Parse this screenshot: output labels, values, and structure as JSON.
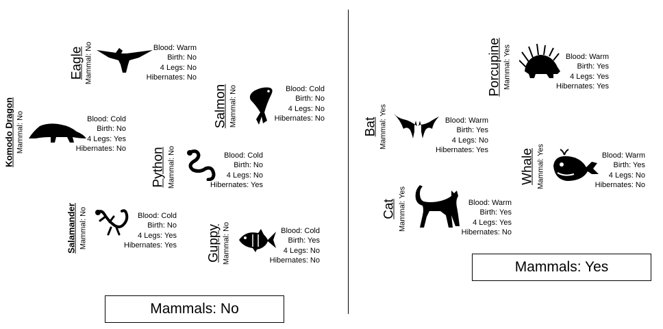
{
  "groups": {
    "no": {
      "label": "Mammals: No"
    },
    "yes": {
      "label": "Mammals: Yes"
    }
  },
  "animals": [
    {
      "name": "Eagle",
      "mammal": "Mammal: No",
      "props": [
        "Blood: Warm",
        "Birth: No",
        "4 Legs: No",
        "Hibernates: No"
      ],
      "icon": "eagle-icon"
    },
    {
      "name": "Komodo Dragon",
      "mammal": "Mammal: No",
      "props": [
        "Blood: Cold",
        "Birth: No",
        "4 Legs: Yes",
        "Hibernates: No"
      ],
      "icon": "komodo-dragon-icon"
    },
    {
      "name": "Salmon",
      "mammal": "Mammal: No",
      "props": [
        "Blood: Cold",
        "Birth: No",
        "4 Legs: No",
        "Hibernates: No"
      ],
      "icon": "salmon-icon"
    },
    {
      "name": "Python",
      "mammal": "Mammal: No",
      "props": [
        "Blood: Cold",
        "Birth: No",
        "4 Legs: No",
        "Hibernates: Yes"
      ],
      "icon": "snake-icon"
    },
    {
      "name": "Salamander",
      "mammal": "Mammal: No",
      "props": [
        "Blood: Cold",
        "Birth: No",
        "4 Legs: Yes",
        "Hibernates: Yes"
      ],
      "icon": "salamander-icon"
    },
    {
      "name": "Guppy",
      "mammal": "Mammal: No",
      "props": [
        "Blood: Cold",
        "Birth: Yes",
        "4 Legs: No",
        "Hibernates: No"
      ],
      "icon": "fish-icon"
    },
    {
      "name": "Porcupine",
      "mammal": "Mammal: Yes",
      "props": [
        "Blood: Warm",
        "Birth: Yes",
        "4 Legs: Yes",
        "Hibernates: Yes"
      ],
      "icon": "porcupine-icon"
    },
    {
      "name": "Bat",
      "mammal": "Mammal: Yes",
      "props": [
        "Blood: Warm",
        "Birth: Yes",
        "4 Legs: No",
        "Hibernates: Yes"
      ],
      "icon": "bat-icon"
    },
    {
      "name": "Whale",
      "mammal": "Mammal: Yes",
      "props": [
        "Blood: Warm",
        "Birth: Yes",
        "4 Legs: No",
        "Hibernates: No"
      ],
      "icon": "whale-icon"
    },
    {
      "name": "Cat",
      "mammal": "Mammal: Yes",
      "props": [
        "Blood: Warm",
        "Birth: Yes",
        "4 Legs: Yes",
        "Hibernates: No"
      ],
      "icon": "cat-icon"
    }
  ]
}
